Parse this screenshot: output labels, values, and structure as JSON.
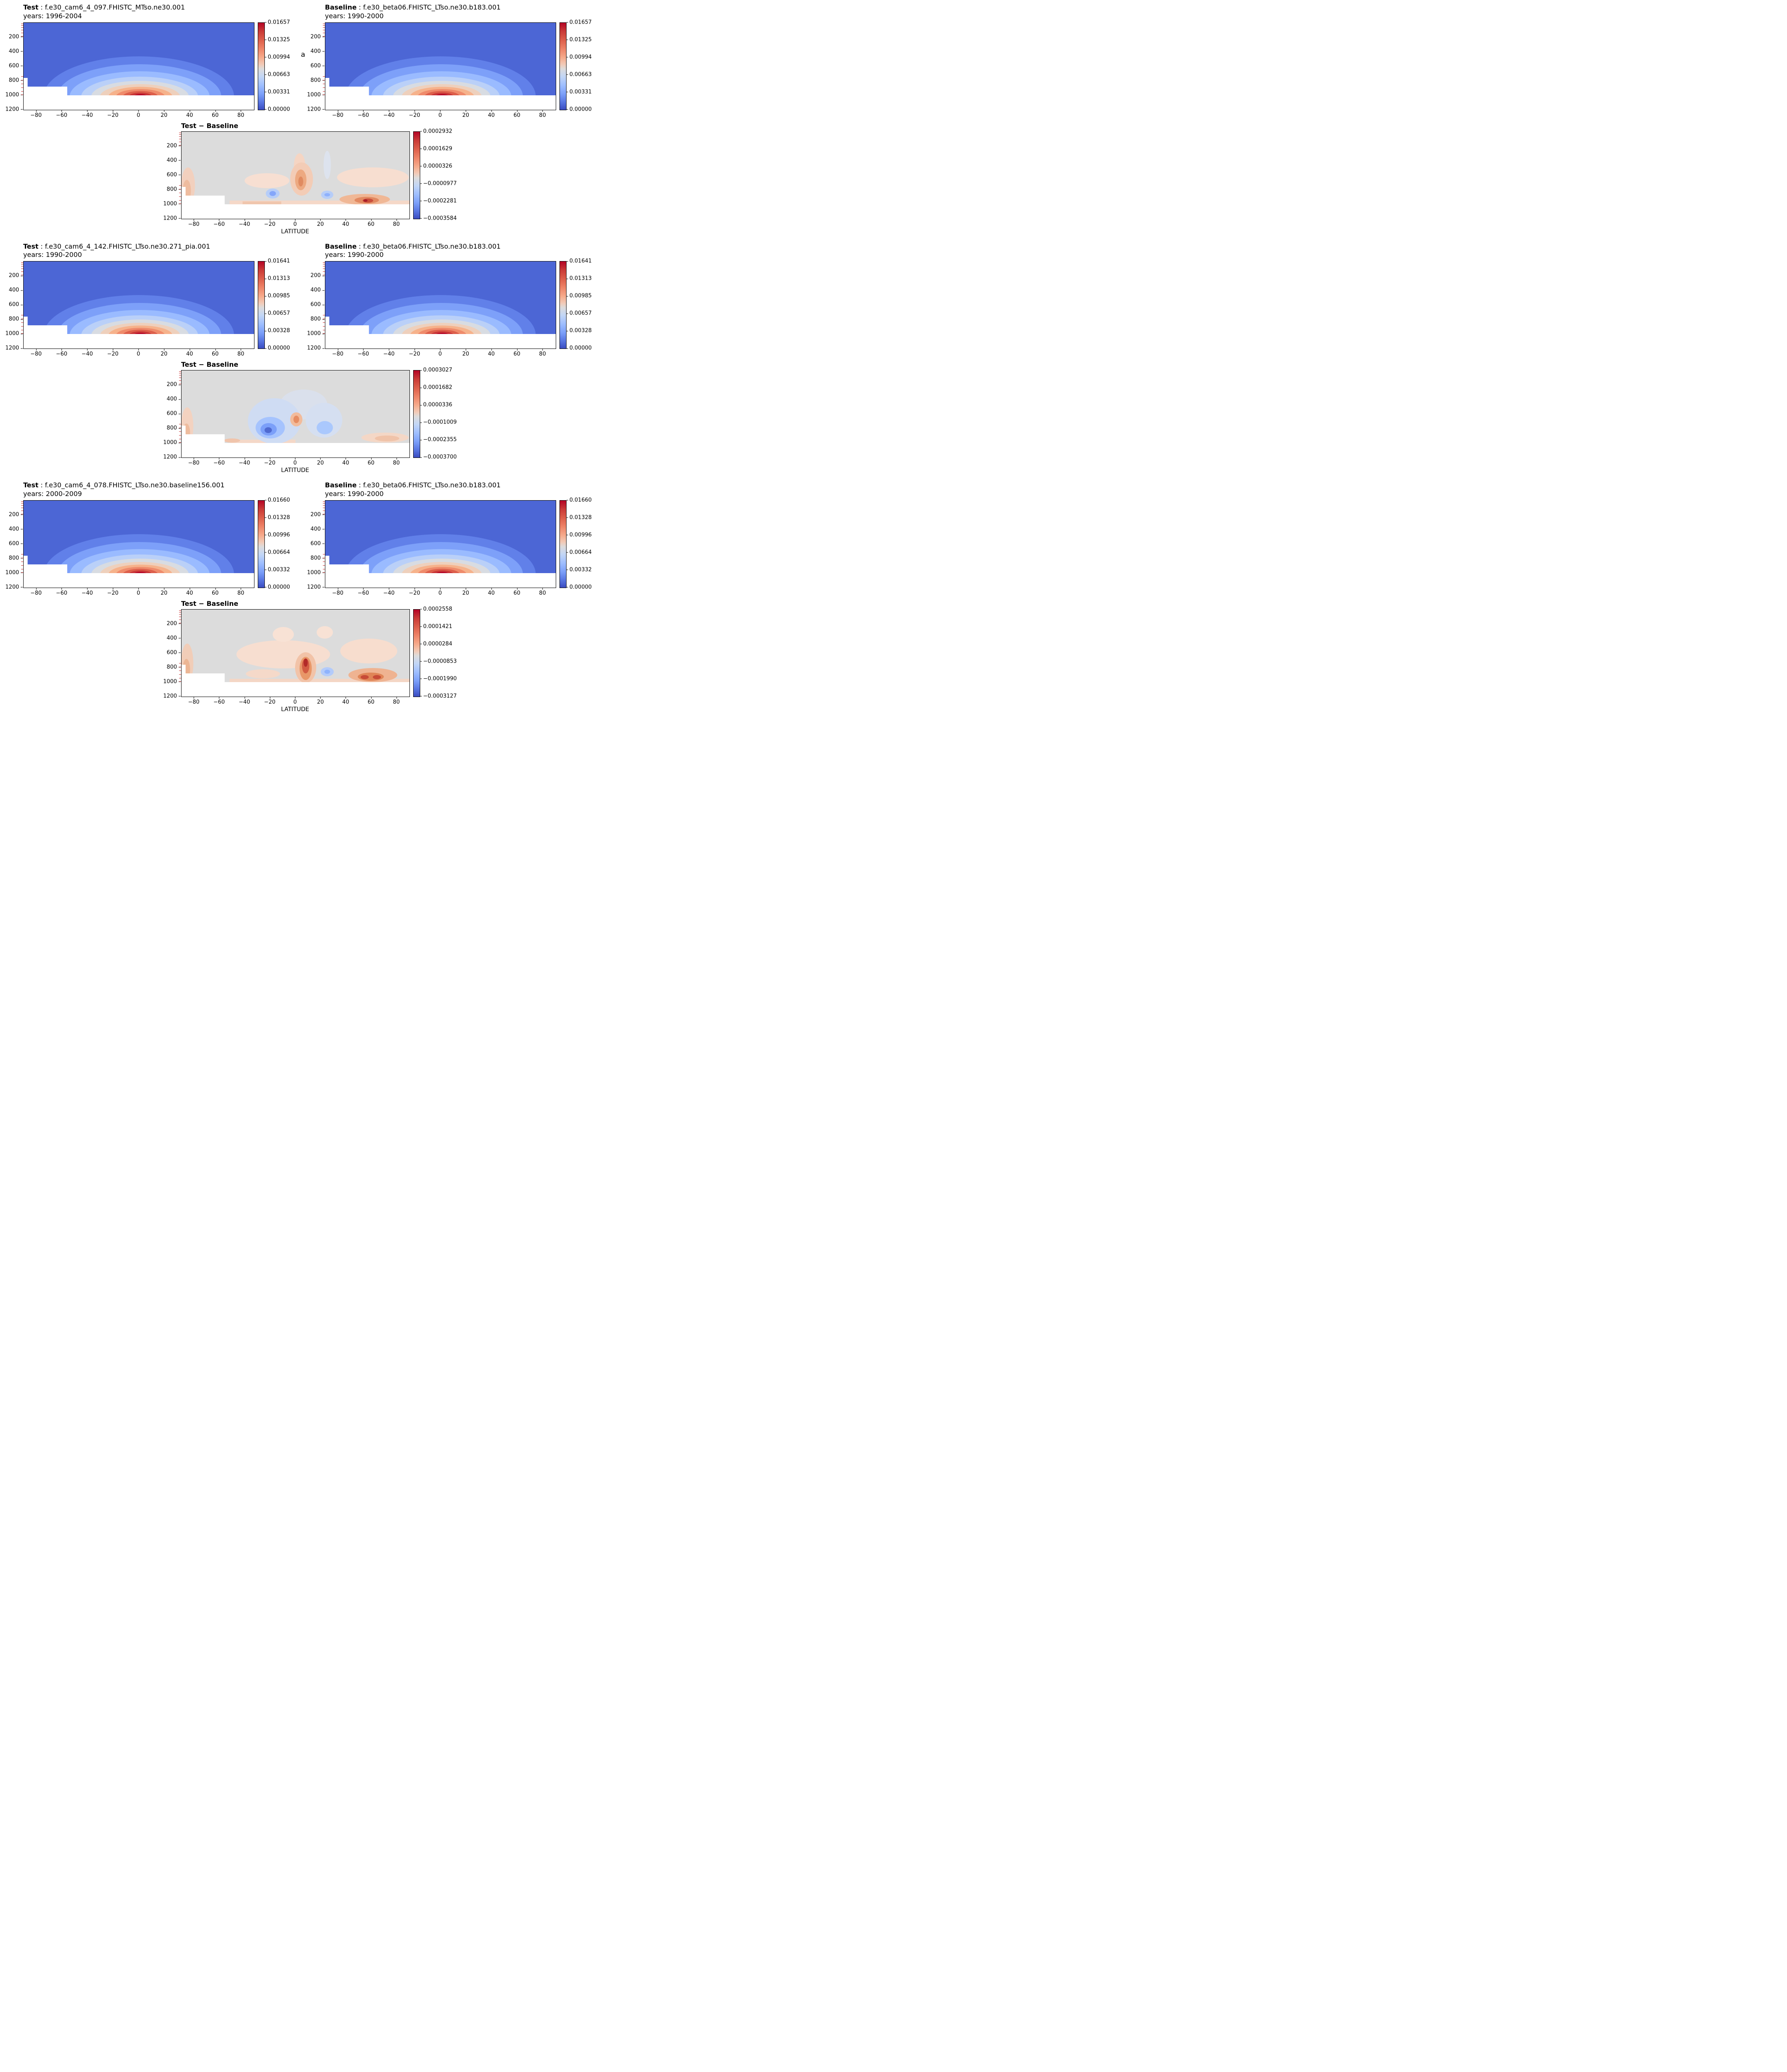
{
  "annotation": {
    "a_label": "a"
  },
  "axes": {
    "y_ticks": [
      "200",
      "400",
      "600",
      "800",
      "1000",
      "1200"
    ],
    "x_ticks": [
      "−80",
      "−60",
      "−40",
      "−20",
      "0",
      "20",
      "40",
      "60",
      "80"
    ],
    "x_label": "LATITUDE"
  },
  "colors": {
    "field_low_blue": "#4c66d5",
    "diff_background_gray": "#dcdcdc",
    "contour_max_red": "#b40426",
    "minor_tick_red": "#cc3333"
  },
  "groups": [
    {
      "test": {
        "label": "Test",
        "rest": " : f.e30_cam6_4_097.FHISTC_MTso.ne30.001",
        "years": "years: 1996-2004"
      },
      "baseline": {
        "label": "Baseline",
        "rest": " : f.e30_beta06.FHISTC_LTso.ne30.b183.001",
        "years": "years: 1990-2000"
      },
      "cbar_ticks": [
        "0.01657",
        "0.01325",
        "0.00994",
        "0.00663",
        "0.00331",
        "0.00000"
      ],
      "diff": {
        "title": "Test − Baseline",
        "cbar_ticks": [
          "0.0002932",
          "0.0001629",
          "0.0000326",
          "−0.0000977",
          "−0.0002281",
          "−0.0003584"
        ]
      }
    },
    {
      "test": {
        "label": "Test",
        "rest": " : f.e30_cam6_4_142.FHISTC_LTso.ne30.271_pia.001",
        "years": "years: 1990-2000"
      },
      "baseline": {
        "label": "Baseline",
        "rest": " : f.e30_beta06.FHISTC_LTso.ne30.b183.001",
        "years": "years: 1990-2000"
      },
      "cbar_ticks": [
        "0.01641",
        "0.01313",
        "0.00985",
        "0.00657",
        "0.00328",
        "0.00000"
      ],
      "diff": {
        "title": "Test − Baseline",
        "cbar_ticks": [
          "0.0003027",
          "0.0001682",
          "0.0000336",
          "−0.0001009",
          "−0.0002355",
          "−0.0003700"
        ]
      }
    },
    {
      "test": {
        "label": "Test",
        "rest": " : f.e30_cam6_4_078.FHISTC_LTso.ne30.baseline156.001",
        "years": "years: 2000-2009"
      },
      "baseline": {
        "label": "Baseline",
        "rest": " : f.e30_beta06.FHISTC_LTso.ne30.b183.001",
        "years": "years: 1990-2000"
      },
      "cbar_ticks": [
        "0.01660",
        "0.01328",
        "0.00996",
        "0.00664",
        "0.00332",
        "0.00000"
      ],
      "diff": {
        "title": "Test − Baseline",
        "cbar_ticks": [
          "0.0002558",
          "0.0001421",
          "0.0000284",
          "−0.0000853",
          "−0.0001990",
          "−0.0003127"
        ]
      }
    }
  ],
  "chart_data": [
    {
      "type": "heatmap",
      "panel": "group1_test",
      "title": "Test : f.e30_cam6_4_097.FHISTC_MTso.ne30.001",
      "years": "1996-2004",
      "x_ticks": [
        -80,
        -60,
        -40,
        -20,
        0,
        20,
        40,
        60,
        80
      ],
      "y_ticks": [
        200,
        400,
        600,
        800,
        1000,
        1200
      ],
      "y_inverted": true,
      "colormap": "coolwarm",
      "colorbar_ticks": [
        0.01657,
        0.01325,
        0.00994,
        0.00663,
        0.00331,
        0.0
      ],
      "max_location": {
        "latitude": 0,
        "level": 1000
      },
      "pattern": "low-value blue field aloft with concentric warm maximum (~0.0166) near surface at the equator; white below-surface terrain band, elevated over Antarctica at far left"
    },
    {
      "type": "heatmap",
      "panel": "group1_baseline",
      "title": "Baseline : f.e30_beta06.FHISTC_LTso.ne30.b183.001",
      "years": "1990-2000",
      "x_ticks": [
        -80,
        -60,
        -40,
        -20,
        0,
        20,
        40,
        60,
        80
      ],
      "y_ticks": [
        200,
        400,
        600,
        800,
        1000,
        1200
      ],
      "y_inverted": true,
      "colormap": "coolwarm",
      "colorbar_ticks": [
        0.01657,
        0.01325,
        0.00994,
        0.00663,
        0.00331,
        0.0
      ],
      "max_location": {
        "latitude": 0,
        "level": 1000
      },
      "pattern": "same structure as test panel"
    },
    {
      "type": "heatmap",
      "panel": "group1_diff",
      "title": "Test − Baseline",
      "xlabel": "LATITUDE",
      "x_ticks": [
        -80,
        -60,
        -40,
        -20,
        0,
        20,
        40,
        60,
        80
      ],
      "y_ticks": [
        200,
        400,
        600,
        800,
        1000,
        1200
      ],
      "y_inverted": true,
      "colormap": "coolwarm",
      "colorbar_ticks": [
        0.0002932,
        0.0001629,
        3.26e-05,
        -9.77e-05,
        -0.0002281,
        -0.0003584
      ],
      "pattern": "mostly near-zero gray; warm anomaly near surface 40–80N (strongest ~55–60N), warm column near equator 550–750 hPa, cool spots near 20S and 25N around 850 hPa"
    },
    {
      "type": "heatmap",
      "panel": "group2_test",
      "title": "Test : f.e30_cam6_4_142.FHISTC_LTso.ne30.271_pia.001",
      "years": "1990-2000",
      "x_ticks": [
        -80,
        -60,
        -40,
        -20,
        0,
        20,
        40,
        60,
        80
      ],
      "y_ticks": [
        200,
        400,
        600,
        800,
        1000,
        1200
      ],
      "y_inverted": true,
      "colormap": "coolwarm",
      "colorbar_ticks": [
        0.01641,
        0.01313,
        0.00985,
        0.00657,
        0.00328,
        0.0
      ],
      "max_location": {
        "latitude": 0,
        "level": 1000
      },
      "pattern": "blue field aloft, warm near-surface equatorial maximum"
    },
    {
      "type": "heatmap",
      "panel": "group2_baseline",
      "title": "Baseline : f.e30_beta06.FHISTC_LTso.ne30.b183.001",
      "years": "1990-2000",
      "x_ticks": [
        -80,
        -60,
        -40,
        -20,
        0,
        20,
        40,
        60,
        80
      ],
      "y_ticks": [
        200,
        400,
        600,
        800,
        1000,
        1200
      ],
      "y_inverted": true,
      "colormap": "coolwarm",
      "colorbar_ticks": [
        0.01641,
        0.01313,
        0.00985,
        0.00657,
        0.00328,
        0.0
      ],
      "max_location": {
        "latitude": 0,
        "level": 1000
      },
      "pattern": "same structure as test panel"
    },
    {
      "type": "heatmap",
      "panel": "group2_diff",
      "title": "Test − Baseline",
      "xlabel": "LATITUDE",
      "x_ticks": [
        -80,
        -60,
        -40,
        -20,
        0,
        20,
        40,
        60,
        80
      ],
      "y_ticks": [
        200,
        400,
        600,
        800,
        1000,
        1200
      ],
      "y_inverted": true,
      "colormap": "coolwarm",
      "colorbar_ticks": [
        0.0003027,
        0.0001682,
        3.36e-05,
        -0.0001009,
        -0.0002355,
        -0.00037
      ],
      "pattern": "mostly gray; strong cool anomaly centered near 18S at ~850 hPa with secondary cool region near 20N, small warm spot near equator ~700 hPa, faint warm anomalies at edges and near surface"
    },
    {
      "type": "heatmap",
      "panel": "group3_test",
      "title": "Test : f.e30_cam6_4_078.FHISTC_LTso.ne30.baseline156.001",
      "years": "2000-2009",
      "x_ticks": [
        -80,
        -60,
        -40,
        -20,
        0,
        20,
        40,
        60,
        80
      ],
      "y_ticks": [
        200,
        400,
        600,
        800,
        1000,
        1200
      ],
      "y_inverted": true,
      "colormap": "coolwarm",
      "colorbar_ticks": [
        0.0166,
        0.01328,
        0.00996,
        0.00664,
        0.00332,
        0.0
      ],
      "max_location": {
        "latitude": 0,
        "level": 1000
      },
      "pattern": "blue field aloft, warm near-surface equatorial maximum"
    },
    {
      "type": "heatmap",
      "panel": "group3_baseline",
      "title": "Baseline : f.e30_beta06.FHISTC_LTso.ne30.b183.001",
      "years": "1990-2000",
      "x_ticks": [
        -80,
        -60,
        -40,
        -20,
        0,
        20,
        40,
        60,
        80
      ],
      "y_ticks": [
        200,
        400,
        600,
        800,
        1000,
        1200
      ],
      "y_inverted": true,
      "colormap": "coolwarm",
      "colorbar_ticks": [
        0.0166,
        0.01328,
        0.00996,
        0.00664,
        0.00332,
        0.0
      ],
      "max_location": {
        "latitude": 0,
        "level": 1000
      },
      "pattern": "same structure as test panel"
    },
    {
      "type": "heatmap",
      "panel": "group3_diff",
      "title": "Test − Baseline",
      "xlabel": "LATITUDE",
      "x_ticks": [
        -80,
        -60,
        -40,
        -20,
        0,
        20,
        40,
        60,
        80
      ],
      "y_ticks": [
        200,
        400,
        600,
        800,
        1000,
        1200
      ],
      "y_inverted": true,
      "colormap": "coolwarm",
      "colorbar_ticks": [
        0.0002558,
        0.0001421,
        2.84e-05,
        -8.53e-05,
        -0.000199,
        -0.0003127
      ],
      "pattern": "widespread faint warm anomalies; strong warm column near 10N 600–1000 hPa (dark core ~730 hPa), warm blob 45–75N near surface, cool spot near 25N ~870 hPa"
    }
  ]
}
